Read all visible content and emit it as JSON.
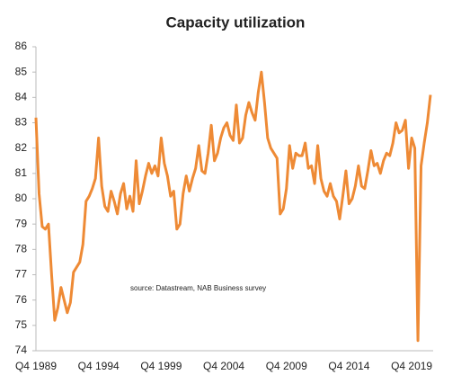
{
  "chart_data": {
    "type": "line",
    "title": "Capacity utilization",
    "annotation": "source:  Datastream, NAB Business survey",
    "categories": [
      "Q4 1989",
      null,
      null,
      null,
      null,
      null,
      null,
      null,
      null,
      null,
      null,
      null,
      null,
      null,
      null,
      null,
      null,
      null,
      null,
      null,
      "Q4 1994",
      null,
      null,
      null,
      null,
      null,
      null,
      null,
      null,
      null,
      null,
      null,
      null,
      null,
      null,
      null,
      null,
      null,
      null,
      null,
      "Q4 1999",
      null,
      null,
      null,
      null,
      null,
      null,
      null,
      null,
      null,
      null,
      null,
      null,
      null,
      null,
      null,
      null,
      null,
      null,
      null,
      "Q4 2004",
      null,
      null,
      null,
      null,
      null,
      null,
      null,
      null,
      null,
      null,
      null,
      null,
      null,
      null,
      null,
      null,
      null,
      null,
      null,
      "Q4 2009",
      null,
      null,
      null,
      null,
      null,
      null,
      null,
      null,
      null,
      null,
      null,
      null,
      null,
      null,
      null,
      null,
      null,
      null,
      null,
      "Q4 2014",
      null,
      null,
      null,
      null,
      null,
      null,
      null,
      null,
      null,
      null,
      null,
      null,
      null,
      null,
      null,
      null,
      null,
      null,
      null,
      "Q4 2019",
      null,
      null,
      null,
      null,
      null,
      null
    ],
    "values": [
      83.2,
      80.2,
      78.9,
      78.8,
      79.0,
      77.0,
      75.2,
      75.7,
      76.5,
      76.0,
      75.5,
      75.9,
      77.1,
      77.3,
      77.5,
      78.2,
      79.9,
      80.1,
      80.4,
      80.8,
      82.4,
      80.5,
      79.7,
      79.5,
      80.3,
      79.9,
      79.4,
      80.2,
      80.6,
      79.6,
      80.1,
      79.5,
      81.5,
      79.8,
      80.3,
      80.9,
      81.4,
      81.0,
      81.3,
      80.9,
      82.4,
      81.4,
      80.9,
      80.1,
      80.3,
      78.8,
      79.0,
      80.2,
      80.9,
      80.3,
      80.8,
      81.2,
      82.1,
      81.1,
      81.0,
      81.8,
      82.9,
      81.5,
      81.8,
      82.4,
      82.8,
      83.0,
      82.5,
      82.3,
      83.7,
      82.2,
      82.4,
      83.3,
      83.8,
      83.4,
      83.1,
      84.2,
      85.0,
      83.8,
      82.4,
      82.0,
      81.8,
      81.6,
      79.4,
      79.6,
      80.4,
      82.1,
      81.2,
      81.8,
      81.7,
      81.7,
      82.2,
      81.2,
      81.3,
      80.6,
      82.1,
      80.8,
      80.3,
      80.1,
      80.6,
      80.1,
      79.9,
      79.2,
      80.1,
      81.1,
      79.8,
      80.0,
      80.5,
      81.3,
      80.5,
      80.4,
      81.1,
      81.9,
      81.3,
      81.4,
      81.0,
      81.5,
      81.8,
      81.7,
      82.2,
      83.0,
      82.6,
      82.7,
      83.1,
      81.2,
      82.4,
      82.0,
      74.4,
      81.3,
      82.2,
      83.0,
      84.1
    ],
    "color": "#ee8a35",
    "ylim": [
      74,
      86
    ],
    "yticks": [
      74,
      75,
      76,
      77,
      78,
      79,
      80,
      81,
      82,
      83,
      84,
      85,
      86
    ],
    "grid": false
  }
}
